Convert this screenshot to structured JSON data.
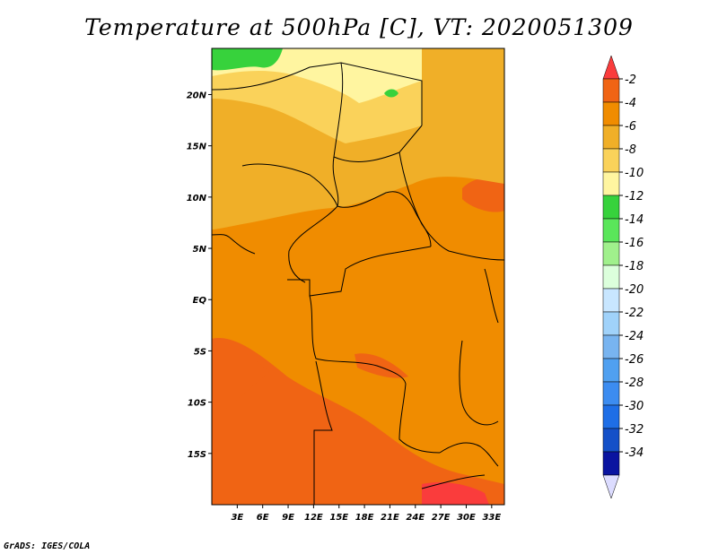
{
  "title": "Temperature at 500hPa [C], VT: 2020051309",
  "credit": "GrADS: IGES/COLA",
  "lat_axis": {
    "labels": [
      "20N",
      "15N",
      "10N",
      "5N",
      "EQ",
      "5S",
      "10S",
      "15S"
    ],
    "values": [
      20,
      15,
      10,
      5,
      0,
      -5,
      -10,
      -15
    ],
    "range": [
      -20,
      24.5
    ]
  },
  "lon_axis": {
    "labels": [
      "3E",
      "6E",
      "9E",
      "12E",
      "15E",
      "18E",
      "21E",
      "24E",
      "27E",
      "30E",
      "33E"
    ],
    "values": [
      3,
      6,
      9,
      12,
      15,
      18,
      21,
      24,
      27,
      30,
      33
    ],
    "range": [
      0,
      34.5
    ]
  },
  "colorbar": {
    "labels": [
      "-2",
      "-4",
      "-6",
      "-8",
      "-10",
      "-12",
      "-14",
      "-16",
      "-18",
      "-20",
      "-22",
      "-24",
      "-26",
      "-28",
      "-30",
      "-32",
      "-34"
    ],
    "colors": [
      "#fa3c3c",
      "#f06414",
      "#f08c00",
      "#f0af28",
      "#fad25a",
      "#fff5a0",
      "#37d23c",
      "#5ae65a",
      "#a0f08c",
      "#dcffdc",
      "#c8e6ff",
      "#a0d2fa",
      "#78b4f0",
      "#50a0f0",
      "#3c8cf0",
      "#1e6ee6",
      "#1450c8",
      "#0a14a0",
      "#dcdcff"
    ]
  }
}
